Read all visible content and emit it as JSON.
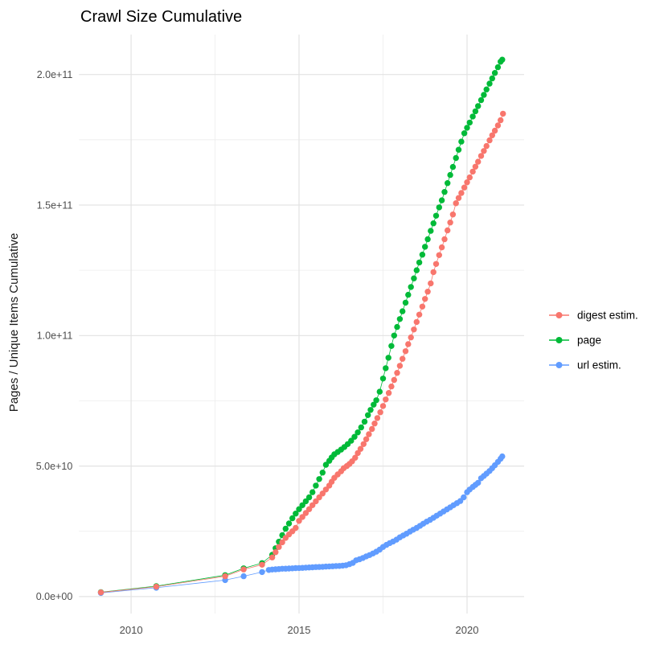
{
  "title": "Crawl Size Cumulative",
  "axes": {
    "y_title": "Pages / Unique Items Cumulative",
    "x_title": ""
  },
  "legend": {
    "position": "right",
    "items": [
      {
        "label": "digest estim."
      },
      {
        "label": "page"
      },
      {
        "label": "url estim."
      }
    ]
  },
  "chart_data": {
    "type": "scatter",
    "title": "Crawl Size Cumulative",
    "xlabel": "",
    "ylabel": "Pages / Unique Items Cumulative",
    "grid": "on",
    "legend_position": "right",
    "x_axis": {
      "major": [
        2010,
        2015,
        2020
      ],
      "labels": [
        "2010",
        "2015",
        "2020"
      ],
      "minor": [
        2012.5,
        2017.5
      ],
      "lim": [
        2008.45,
        2021.7
      ]
    },
    "y_axis": {
      "major_e9": [
        0,
        50,
        100,
        150,
        200
      ],
      "labels": [
        "0.0e+00",
        "5.0e+10",
        "1.0e+11",
        "1.5e+11",
        "2.0e+11"
      ],
      "minor_e9": [
        25,
        75,
        125,
        175
      ],
      "lim_e9": [
        -6.5,
        215.3
      ],
      "unit": "items, 1e9 per unit"
    },
    "draw_order": [
      1,
      2,
      0
    ],
    "series": [
      {
        "name": "digest estim.",
        "color": "#F8766D",
        "points": [
          [
            2009.1,
            1.6
          ],
          [
            2010.75,
            3.8
          ],
          [
            2012.8,
            7.8
          ],
          [
            2013.35,
            10.4
          ],
          [
            2013.9,
            12.2
          ],
          [
            2014.2,
            15.0
          ],
          [
            2014.3,
            17.0
          ],
          [
            2014.4,
            19.0
          ],
          [
            2014.5,
            20.8
          ],
          [
            2014.6,
            22.5
          ],
          [
            2014.7,
            23.8
          ],
          [
            2014.8,
            25.0
          ],
          [
            2014.9,
            26.3
          ],
          [
            2015.0,
            29.0
          ],
          [
            2015.1,
            30.5
          ],
          [
            2015.2,
            32.0
          ],
          [
            2015.3,
            33.5
          ],
          [
            2015.4,
            35.0
          ],
          [
            2015.5,
            36.5
          ],
          [
            2015.6,
            38.0
          ],
          [
            2015.7,
            39.5
          ],
          [
            2015.8,
            41.0
          ],
          [
            2015.9,
            42.5
          ],
          [
            2015.97,
            44.0
          ],
          [
            2016.05,
            45.5
          ],
          [
            2016.15,
            46.8
          ],
          [
            2016.25,
            48.0
          ],
          [
            2016.33,
            49.2
          ],
          [
            2016.42,
            50.0
          ],
          [
            2016.5,
            50.8
          ],
          [
            2016.58,
            51.8
          ],
          [
            2016.67,
            53.2
          ],
          [
            2016.75,
            55.0
          ],
          [
            2016.83,
            56.6
          ],
          [
            2016.92,
            58.4
          ],
          [
            2017.0,
            60.3
          ],
          [
            2017.08,
            62.2
          ],
          [
            2017.17,
            64.2
          ],
          [
            2017.25,
            66.3
          ],
          [
            2017.33,
            68.4
          ],
          [
            2017.42,
            70.6
          ],
          [
            2017.5,
            73.0
          ],
          [
            2017.58,
            75.5
          ],
          [
            2017.67,
            78.0
          ],
          [
            2017.75,
            80.5
          ],
          [
            2017.83,
            83.0
          ],
          [
            2017.92,
            85.7
          ],
          [
            2018.0,
            88.4
          ],
          [
            2018.08,
            91.1
          ],
          [
            2018.17,
            94.0
          ],
          [
            2018.25,
            96.7
          ],
          [
            2018.33,
            99.3
          ],
          [
            2018.42,
            102.3
          ],
          [
            2018.5,
            105.2
          ],
          [
            2018.58,
            108.0
          ],
          [
            2018.67,
            111.1
          ],
          [
            2018.75,
            114.0
          ],
          [
            2018.83,
            116.8
          ],
          [
            2018.92,
            120.0
          ],
          [
            2019.0,
            124.3
          ],
          [
            2019.08,
            127.4
          ],
          [
            2019.17,
            130.8
          ],
          [
            2019.25,
            133.8
          ],
          [
            2019.33,
            136.9
          ],
          [
            2019.42,
            140.3
          ],
          [
            2019.5,
            143.3
          ],
          [
            2019.58,
            146.4
          ],
          [
            2019.67,
            150.7
          ],
          [
            2019.75,
            152.7
          ],
          [
            2019.83,
            154.6
          ],
          [
            2019.92,
            156.7
          ],
          [
            2020.0,
            158.7
          ],
          [
            2020.08,
            160.6
          ],
          [
            2020.17,
            162.8
          ],
          [
            2020.25,
            164.7
          ],
          [
            2020.33,
            166.6
          ],
          [
            2020.42,
            168.8
          ],
          [
            2020.5,
            170.7
          ],
          [
            2020.58,
            172.6
          ],
          [
            2020.67,
            174.8
          ],
          [
            2020.75,
            176.7
          ],
          [
            2020.83,
            178.5
          ],
          [
            2020.92,
            180.5
          ],
          [
            2021.0,
            182.5
          ],
          [
            2021.07,
            185.0
          ]
        ]
      },
      {
        "name": "page",
        "color": "#00BA38",
        "points": [
          [
            2009.1,
            1.7
          ],
          [
            2010.75,
            4.0
          ],
          [
            2012.8,
            8.2
          ],
          [
            2013.35,
            10.8
          ],
          [
            2013.9,
            12.8
          ],
          [
            2014.2,
            16.0
          ],
          [
            2014.3,
            18.5
          ],
          [
            2014.4,
            21.0
          ],
          [
            2014.5,
            23.5
          ],
          [
            2014.6,
            26.0
          ],
          [
            2014.7,
            28.0
          ],
          [
            2014.8,
            30.0
          ],
          [
            2014.9,
            31.8
          ],
          [
            2015.0,
            33.5
          ],
          [
            2015.1,
            35.0
          ],
          [
            2015.2,
            36.5
          ],
          [
            2015.3,
            38.0
          ],
          [
            2015.4,
            40.0
          ],
          [
            2015.5,
            42.5
          ],
          [
            2015.6,
            45.0
          ],
          [
            2015.7,
            47.5
          ],
          [
            2015.8,
            50.5
          ],
          [
            2015.9,
            52.0
          ],
          [
            2015.97,
            53.3
          ],
          [
            2016.05,
            54.5
          ],
          [
            2016.15,
            55.4
          ],
          [
            2016.25,
            56.3
          ],
          [
            2016.35,
            57.3
          ],
          [
            2016.45,
            58.4
          ],
          [
            2016.55,
            59.7
          ],
          [
            2016.65,
            61.2
          ],
          [
            2016.75,
            62.9
          ],
          [
            2016.85,
            64.8
          ],
          [
            2016.95,
            67.0
          ],
          [
            2017.05,
            69.5
          ],
          [
            2017.13,
            71.5
          ],
          [
            2017.22,
            73.5
          ],
          [
            2017.3,
            75.2
          ],
          [
            2017.4,
            78.5
          ],
          [
            2017.5,
            83.5
          ],
          [
            2017.58,
            87.5
          ],
          [
            2017.66,
            91.5
          ],
          [
            2017.75,
            96.0
          ],
          [
            2017.83,
            100.0
          ],
          [
            2017.92,
            103.3
          ],
          [
            2018.0,
            106.3
          ],
          [
            2018.08,
            109.3
          ],
          [
            2018.17,
            112.6
          ],
          [
            2018.25,
            115.6
          ],
          [
            2018.33,
            118.6
          ],
          [
            2018.42,
            121.9
          ],
          [
            2018.5,
            125.0
          ],
          [
            2018.58,
            128.0
          ],
          [
            2018.67,
            131.0
          ],
          [
            2018.75,
            134.0
          ],
          [
            2018.83,
            136.9
          ],
          [
            2018.92,
            140.1
          ],
          [
            2019.0,
            143.0
          ],
          [
            2019.08,
            145.9
          ],
          [
            2019.17,
            149.1
          ],
          [
            2019.25,
            151.8
          ],
          [
            2019.33,
            155.0
          ],
          [
            2019.42,
            158.4
          ],
          [
            2019.5,
            161.5
          ],
          [
            2019.58,
            164.6
          ],
          [
            2019.67,
            168.0
          ],
          [
            2019.75,
            171.2
          ],
          [
            2019.83,
            174.3
          ],
          [
            2019.92,
            177.5
          ],
          [
            2020.0,
            179.6
          ],
          [
            2020.08,
            181.6
          ],
          [
            2020.17,
            183.9
          ],
          [
            2020.25,
            185.9
          ],
          [
            2020.33,
            187.9
          ],
          [
            2020.42,
            190.2
          ],
          [
            2020.5,
            192.2
          ],
          [
            2020.58,
            194.3
          ],
          [
            2020.67,
            196.5
          ],
          [
            2020.75,
            198.5
          ],
          [
            2020.83,
            200.6
          ],
          [
            2020.92,
            202.8
          ],
          [
            2021.0,
            204.9
          ],
          [
            2021.05,
            205.7
          ]
        ]
      },
      {
        "name": "url estim.",
        "color": "#619CFF",
        "points": [
          [
            2009.1,
            1.4
          ],
          [
            2010.75,
            3.4
          ],
          [
            2012.8,
            6.3
          ],
          [
            2013.35,
            7.8
          ],
          [
            2013.9,
            9.4
          ],
          [
            2014.1,
            10.2
          ],
          [
            2014.2,
            10.35
          ],
          [
            2014.3,
            10.45
          ],
          [
            2014.4,
            10.55
          ],
          [
            2014.5,
            10.65
          ],
          [
            2014.6,
            10.7
          ],
          [
            2014.7,
            10.75
          ],
          [
            2014.8,
            10.8
          ],
          [
            2014.9,
            10.9
          ],
          [
            2015.0,
            10.95
          ],
          [
            2015.1,
            11.0
          ],
          [
            2015.2,
            11.1
          ],
          [
            2015.3,
            11.15
          ],
          [
            2015.4,
            11.2
          ],
          [
            2015.5,
            11.3
          ],
          [
            2015.6,
            11.35
          ],
          [
            2015.7,
            11.4
          ],
          [
            2015.8,
            11.5
          ],
          [
            2015.9,
            11.55
          ],
          [
            2016.0,
            11.6
          ],
          [
            2016.1,
            11.7
          ],
          [
            2016.2,
            11.75
          ],
          [
            2016.3,
            11.85
          ],
          [
            2016.4,
            12.0
          ],
          [
            2016.5,
            12.4
          ],
          [
            2016.6,
            12.9
          ],
          [
            2016.7,
            13.9
          ],
          [
            2016.8,
            14.3
          ],
          [
            2016.9,
            14.8
          ],
          [
            2017.0,
            15.4
          ],
          [
            2017.1,
            15.9
          ],
          [
            2017.2,
            16.5
          ],
          [
            2017.3,
            17.2
          ],
          [
            2017.4,
            18.0
          ],
          [
            2017.5,
            19.0
          ],
          [
            2017.6,
            19.8
          ],
          [
            2017.7,
            20.5
          ],
          [
            2017.8,
            21.1
          ],
          [
            2017.9,
            21.8
          ],
          [
            2018.0,
            22.7
          ],
          [
            2018.1,
            23.4
          ],
          [
            2018.2,
            24.1
          ],
          [
            2018.3,
            24.9
          ],
          [
            2018.4,
            25.6
          ],
          [
            2018.5,
            26.3
          ],
          [
            2018.6,
            27.1
          ],
          [
            2018.7,
            27.9
          ],
          [
            2018.8,
            28.7
          ],
          [
            2018.9,
            29.4
          ],
          [
            2019.0,
            30.2
          ],
          [
            2019.1,
            31.0
          ],
          [
            2019.2,
            31.8
          ],
          [
            2019.3,
            32.6
          ],
          [
            2019.4,
            33.4
          ],
          [
            2019.5,
            34.2
          ],
          [
            2019.6,
            35.0
          ],
          [
            2019.7,
            35.8
          ],
          [
            2019.8,
            36.6
          ],
          [
            2019.9,
            38.0
          ],
          [
            2020.0,
            40.0
          ],
          [
            2020.08,
            41.0
          ],
          [
            2020.17,
            42.0
          ],
          [
            2020.25,
            42.8
          ],
          [
            2020.33,
            43.6
          ],
          [
            2020.42,
            45.3
          ],
          [
            2020.5,
            46.2
          ],
          [
            2020.58,
            47.1
          ],
          [
            2020.67,
            48.1
          ],
          [
            2020.75,
            49.2
          ],
          [
            2020.83,
            50.3
          ],
          [
            2020.92,
            51.6
          ],
          [
            2021.0,
            52.8
          ],
          [
            2021.05,
            53.7
          ]
        ]
      }
    ]
  }
}
